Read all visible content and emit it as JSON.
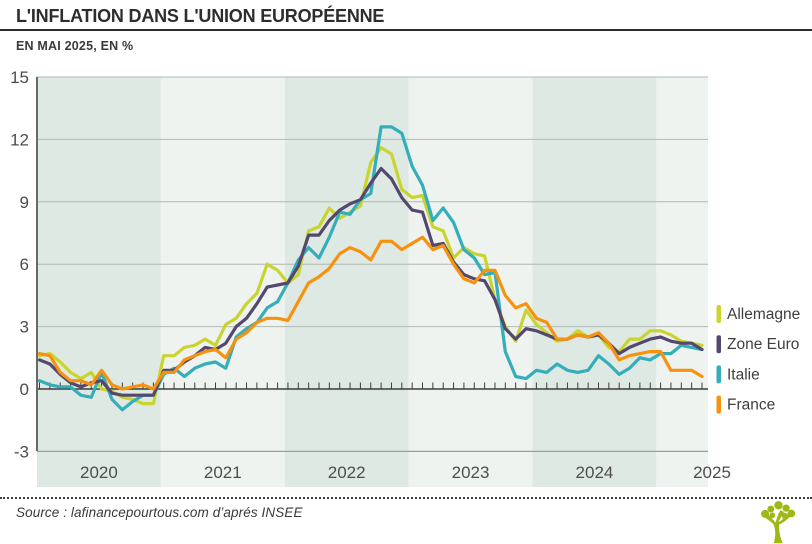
{
  "header": {
    "title": "L'INFLATION DANS L'UNION EUROPÉENNE",
    "subtitle": "EN MAI 2025, EN %"
  },
  "source": {
    "text": "Source : lafinancepourtous.com d’aprés INSEE"
  },
  "logo": {
    "name": "lafinancepourtous-tree-logo",
    "color": "#9fb816"
  },
  "chart_data": {
    "type": "line",
    "title": "L'INFLATION DANS L'UNION EUROPÉENNE",
    "subtitle": "EN MAI 2025, EN %",
    "unit": "%",
    "x_start": "2020-01",
    "x_end": "2025-05",
    "x_tick_labels": [
      "2020",
      "2021",
      "2022",
      "2023",
      "2024",
      "2025"
    ],
    "months_per_year": [
      12,
      12,
      12,
      12,
      12,
      5
    ],
    "band_shades": [
      "dark",
      "light",
      "dark",
      "light",
      "dark",
      "light"
    ],
    "band_colors": {
      "dark": "#dfe9e3",
      "light": "#eef3f0"
    },
    "y_ticks": [
      15,
      12,
      9,
      6,
      3,
      0,
      -3
    ],
    "ylim": [
      -3,
      15
    ],
    "grid": "horizontal",
    "legend_position": "right",
    "draw_order": [
      0,
      2,
      1,
      3
    ],
    "series": [
      {
        "name": "Allemagne",
        "color": "#c9d42f",
        "values": [
          1.6,
          1.7,
          1.3,
          0.8,
          0.5,
          0.8,
          0.0,
          -0.1,
          -0.4,
          -0.5,
          -0.7,
          -0.7,
          1.6,
          1.6,
          2.0,
          2.1,
          2.4,
          2.1,
          3.1,
          3.4,
          4.1,
          4.6,
          6.0,
          5.7,
          5.1,
          5.5,
          7.6,
          7.8,
          8.7,
          8.2,
          8.5,
          8.8,
          10.9,
          11.6,
          11.3,
          9.6,
          9.2,
          9.3,
          7.8,
          7.6,
          6.3,
          6.8,
          6.5,
          6.4,
          4.3,
          3.0,
          2.3,
          3.8,
          3.1,
          2.7,
          2.3,
          2.4,
          2.8,
          2.5,
          2.6,
          2.0,
          1.8,
          2.4,
          2.4,
          2.8,
          2.8,
          2.6,
          2.3,
          2.2,
          2.1
        ]
      },
      {
        "name": "Zone Euro",
        "color": "#54486f",
        "values": [
          1.4,
          1.2,
          0.7,
          0.3,
          0.1,
          0.3,
          0.4,
          -0.2,
          -0.3,
          -0.3,
          -0.3,
          -0.3,
          0.9,
          0.9,
          1.3,
          1.6,
          2.0,
          1.9,
          2.2,
          3.0,
          3.4,
          4.1,
          4.9,
          5.0,
          5.1,
          5.9,
          7.4,
          7.4,
          8.1,
          8.6,
          8.9,
          9.1,
          9.9,
          10.6,
          10.1,
          9.2,
          8.6,
          8.5,
          6.9,
          7.0,
          6.1,
          5.5,
          5.3,
          5.2,
          4.3,
          2.9,
          2.4,
          2.9,
          2.8,
          2.6,
          2.4,
          2.4,
          2.6,
          2.5,
          2.6,
          2.2,
          1.7,
          2.0,
          2.2,
          2.4,
          2.5,
          2.3,
          2.2,
          2.2,
          1.9
        ]
      },
      {
        "name": "Italie",
        "color": "#33aeba",
        "values": [
          0.4,
          0.2,
          0.1,
          0.1,
          -0.3,
          -0.4,
          0.8,
          -0.5,
          -1.0,
          -0.6,
          -0.3,
          -0.3,
          0.7,
          1.0,
          0.6,
          1.0,
          1.2,
          1.3,
          1.0,
          2.5,
          2.9,
          3.2,
          3.9,
          4.2,
          5.1,
          6.2,
          6.8,
          6.3,
          7.3,
          8.5,
          8.4,
          9.1,
          9.4,
          12.6,
          12.6,
          12.3,
          10.7,
          9.8,
          8.1,
          8.7,
          8.0,
          6.7,
          6.3,
          5.5,
          5.6,
          1.8,
          0.6,
          0.5,
          0.9,
          0.8,
          1.2,
          0.9,
          0.8,
          0.9,
          1.6,
          1.2,
          0.7,
          1.0,
          1.5,
          1.4,
          1.7,
          1.7,
          2.1,
          2.0,
          1.9
        ]
      },
      {
        "name": "France",
        "color": "#f6920e",
        "values": [
          1.7,
          1.6,
          0.8,
          0.4,
          0.4,
          0.2,
          0.9,
          0.2,
          0.0,
          0.1,
          0.2,
          0.0,
          0.8,
          0.8,
          1.4,
          1.6,
          1.8,
          1.9,
          1.5,
          2.4,
          2.7,
          3.2,
          3.4,
          3.4,
          3.3,
          4.2,
          5.1,
          5.4,
          5.8,
          6.5,
          6.8,
          6.6,
          6.2,
          7.1,
          7.1,
          6.7,
          7.0,
          7.3,
          6.7,
          6.9,
          6.0,
          5.3,
          5.1,
          5.7,
          5.7,
          4.5,
          3.9,
          4.1,
          3.4,
          3.2,
          2.4,
          2.4,
          2.6,
          2.5,
          2.7,
          2.2,
          1.4,
          1.6,
          1.7,
          1.8,
          1.8,
          0.9,
          0.9,
          0.9,
          0.6
        ]
      }
    ]
  }
}
